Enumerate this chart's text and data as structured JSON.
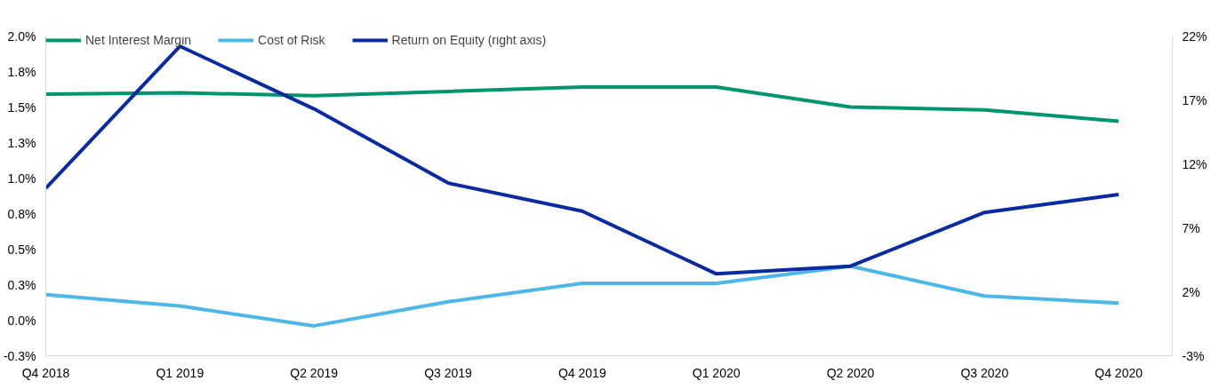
{
  "chart_data": {
    "type": "line",
    "categories": [
      "Q4 2018",
      "Q1 2019",
      "Q2 2019",
      "Q3 2019",
      "Q4 2019",
      "Q1 2020",
      "Q2 2020",
      "Q3 2020",
      "Q4 2020"
    ],
    "series": [
      {
        "name": "Net Interest Margin",
        "color": "#00956e",
        "values": [
          1.59,
          1.6,
          1.58,
          1.61,
          1.64,
          1.64,
          1.5,
          1.48,
          1.4
        ]
      },
      {
        "name": "Cost of Risk",
        "color": "#4db8e8",
        "values": [
          0.18,
          0.1,
          -0.04,
          0.13,
          0.26,
          0.26,
          0.38,
          0.17,
          0.12
        ]
      },
      {
        "name": "Return on Equity (right axis)",
        "color": "#0b2a9f",
        "axis": "y2",
        "values": [
          10.1,
          21.2,
          16.3,
          10.5,
          8.3,
          3.4,
          4.0,
          8.2,
          9.6
        ]
      }
    ],
    "ylim": [
      -0.25,
      2.0
    ],
    "yticks": [
      {
        "value": -0.25,
        "label": "-0.3%"
      },
      {
        "value": 0,
        "label": "0.0%"
      },
      {
        "value": 0.25,
        "label": "0.3%"
      },
      {
        "value": 0.5,
        "label": "0.5%"
      },
      {
        "value": 0.75,
        "label": "0.8%"
      },
      {
        "value": 1.0,
        "label": "1.0%"
      },
      {
        "value": 1.25,
        "label": "1.3%"
      },
      {
        "value": 1.5,
        "label": "1.5%"
      },
      {
        "value": 1.75,
        "label": "1.8%"
      },
      {
        "value": 2.0,
        "label": "2.0%"
      }
    ],
    "y2lim": [
      -3,
      22
    ],
    "y2ticks": [
      {
        "value": -3,
        "label": "-3%"
      },
      {
        "value": 2,
        "label": "2%"
      },
      {
        "value": 7,
        "label": "7%"
      },
      {
        "value": 12,
        "label": "12%"
      },
      {
        "value": 17,
        "label": "17%"
      },
      {
        "value": 22,
        "label": "22%"
      }
    ],
    "legend": "top left",
    "grid": false,
    "line_style": "solid",
    "marker": "none"
  }
}
